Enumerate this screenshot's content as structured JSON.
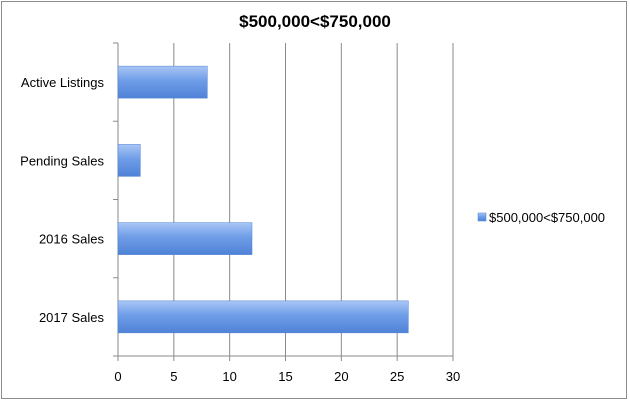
{
  "chart_data": {
    "type": "bar",
    "orientation": "horizontal",
    "title": "$500,000<$750,000",
    "categories": [
      "Active Listings",
      "Pending Sales",
      "2016 Sales",
      "2017 Sales"
    ],
    "series": [
      {
        "name": "$500,000<$750,000",
        "values": [
          8,
          2,
          12,
          26
        ],
        "color": "#6f9de8"
      }
    ],
    "xlim": [
      0,
      30
    ],
    "xticks": [
      0,
      5,
      10,
      15,
      20,
      25,
      30
    ],
    "grid": true,
    "legend_position": "right"
  }
}
